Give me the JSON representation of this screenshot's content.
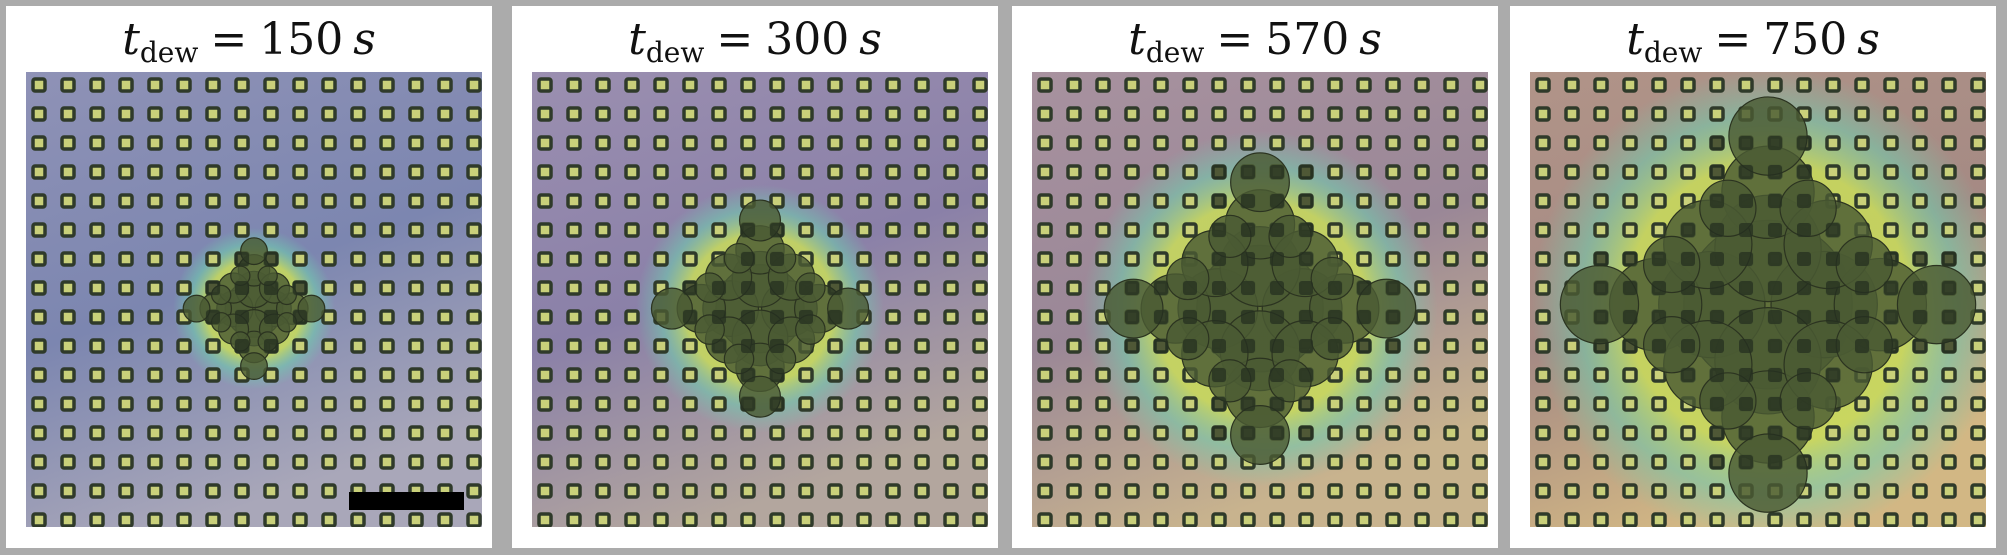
{
  "figure": {
    "panels": [
      {
        "label_t": "t",
        "label_sub": "dew",
        "label_eq": "=",
        "label_value": "150",
        "label_unit": "s",
        "condensate_extent": 0.3,
        "tint": "blue"
      },
      {
        "label_t": "t",
        "label_sub": "dew",
        "label_eq": "=",
        "label_value": "300",
        "label_unit": "s",
        "condensate_extent": 0.46,
        "tint": "violet"
      },
      {
        "label_t": "t",
        "label_sub": "dew",
        "label_eq": "=",
        "label_value": "570",
        "label_unit": "s",
        "condensate_extent": 0.66,
        "tint": "mauve"
      },
      {
        "label_t": "t",
        "label_sub": "dew",
        "label_eq": "=",
        "label_value": "750",
        "label_unit": "s",
        "condensate_extent": 0.88,
        "tint": "tan"
      }
    ],
    "scale_bar_color": "#000000",
    "frame_color": "#ababab"
  }
}
